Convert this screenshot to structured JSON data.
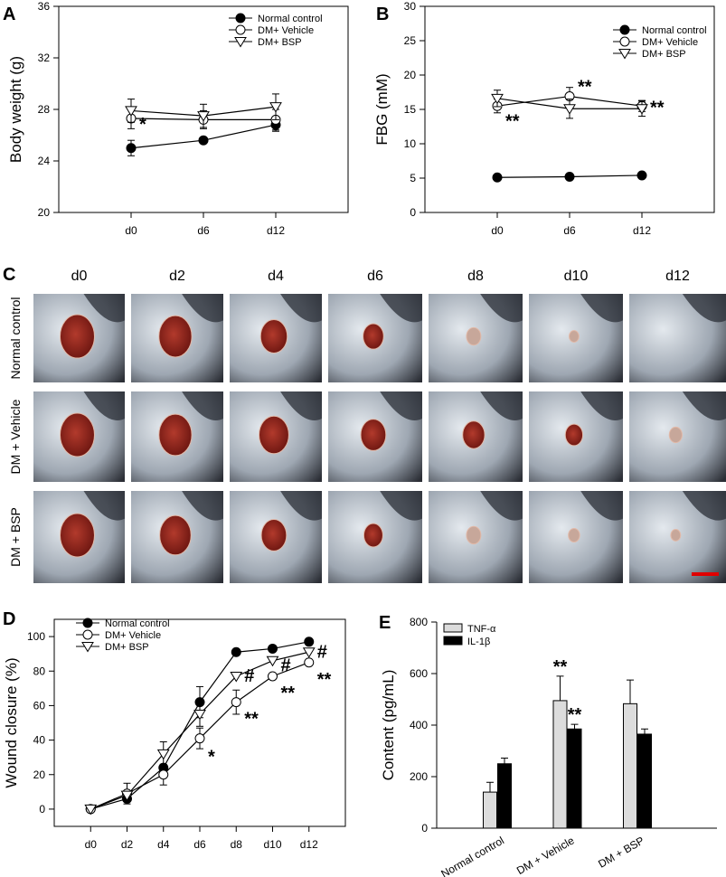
{
  "panels": {
    "A": "A",
    "B": "B",
    "C": "C",
    "D": "D",
    "E": "E"
  },
  "chart_data": [
    {
      "id": "A",
      "type": "line",
      "ylabel": "Body weight (g)",
      "xlabel": "",
      "categories": [
        "d0",
        "d6",
        "d12"
      ],
      "ylim": [
        20,
        36
      ],
      "yticks": [
        20,
        24,
        28,
        32,
        36
      ],
      "series": [
        {
          "name": "Normal control",
          "marker": "filled-circle",
          "values": [
            25.0,
            25.6,
            26.8
          ],
          "err": [
            0.6,
            0.2,
            0.5
          ]
        },
        {
          "name": "DM+ Vehicle",
          "marker": "open-circle",
          "values": [
            27.3,
            27.2,
            27.2
          ],
          "err": [
            0.8,
            0.7,
            0.8
          ]
        },
        {
          "name": "DM+ BSP",
          "marker": "open-triangle",
          "values": [
            27.9,
            27.5,
            28.2
          ],
          "err": [
            0.9,
            0.9,
            1.0
          ]
        }
      ],
      "annotations": [
        {
          "x": "d0",
          "y": 26.8,
          "text": "*"
        }
      ]
    },
    {
      "id": "B",
      "type": "line",
      "ylabel": "FBG (mM)",
      "xlabel": "",
      "categories": [
        "d0",
        "d6",
        "d12"
      ],
      "ylim": [
        0,
        30
      ],
      "yticks": [
        0,
        5,
        10,
        15,
        20,
        25,
        30
      ],
      "series": [
        {
          "name": "Normal control",
          "marker": "filled-circle",
          "values": [
            5.1,
            5.2,
            5.4
          ],
          "err": [
            0.2,
            0.3,
            0.3
          ]
        },
        {
          "name": "DM+ Vehicle",
          "marker": "open-circle",
          "values": [
            15.5,
            16.9,
            15.5
          ],
          "err": [
            1.0,
            1.3,
            0.8
          ]
        },
        {
          "name": "DM+ BSP",
          "marker": "open-triangle",
          "values": [
            16.6,
            15.1,
            15.1
          ],
          "err": [
            1.2,
            1.4,
            1.1
          ]
        }
      ],
      "annotations": [
        {
          "x": "d0",
          "y": 13.2,
          "text": "**"
        },
        {
          "x": "d6",
          "y": 18.2,
          "text": "**"
        },
        {
          "x": "d12",
          "y": 15.2,
          "text": "**"
        }
      ]
    },
    {
      "id": "D",
      "type": "line",
      "ylabel": "Wound closure (%)",
      "xlabel": "",
      "categories": [
        "d0",
        "d2",
        "d4",
        "d6",
        "d8",
        "d10",
        "d12"
      ],
      "ylim": [
        -10,
        110
      ],
      "yticks": [
        0,
        20,
        40,
        60,
        80,
        100
      ],
      "series": [
        {
          "name": "Normal control",
          "marker": "filled-circle",
          "values": [
            0,
            6,
            24,
            62,
            91,
            93,
            97
          ],
          "err": [
            0,
            0,
            0,
            9,
            0,
            0,
            0
          ]
        },
        {
          "name": "DM+ Vehicle",
          "marker": "open-circle",
          "values": [
            0,
            9,
            20,
            41,
            62,
            77,
            85
          ],
          "err": [
            0,
            6,
            6,
            6,
            7,
            0,
            0
          ]
        },
        {
          "name": "DM+ BSP",
          "marker": "open-triangle",
          "values": [
            0,
            8,
            32,
            55,
            77,
            86,
            91
          ],
          "err": [
            0,
            0,
            7,
            7,
            0,
            0,
            0
          ]
        }
      ],
      "annotations": [
        {
          "x": "d6",
          "y": 30,
          "text": "*"
        },
        {
          "x": "d8",
          "y": 52,
          "text": "**"
        },
        {
          "x": "d8",
          "y": 77,
          "text": "#"
        },
        {
          "x": "d10",
          "y": 83,
          "text": "#"
        },
        {
          "x": "d10",
          "y": 67,
          "text": "**"
        },
        {
          "x": "d12",
          "y": 75,
          "text": "**"
        },
        {
          "x": "d12",
          "y": 91,
          "text": "#"
        }
      ]
    },
    {
      "id": "E",
      "type": "bar",
      "ylabel": "Content (pg/mL)",
      "xlabel": "",
      "categories": [
        "Normal control",
        "DM + Vehicle",
        "DM + BSP"
      ],
      "ylim": [
        0,
        800
      ],
      "yticks": [
        0,
        200,
        400,
        600,
        800
      ],
      "series": [
        {
          "name": "TNF-α",
          "color": "#dcdcdc",
          "values": [
            140,
            495,
            483
          ],
          "err": [
            38,
            95,
            92
          ]
        },
        {
          "name": "IL-1β",
          "color": "#000000",
          "values": [
            250,
            385,
            365
          ],
          "err": [
            22,
            18,
            20
          ]
        }
      ],
      "annotations": [
        {
          "x": "DM + Vehicle",
          "series": "TNF-α",
          "text": "**"
        },
        {
          "x": "DM + Vehicle",
          "series": "IL-1β",
          "text": "**"
        }
      ]
    }
  ],
  "photos": {
    "days": [
      "d0",
      "d2",
      "d4",
      "d6",
      "d8",
      "d10",
      "d12"
    ],
    "rows": [
      {
        "label": "Normal control",
        "wound": [
          1.0,
          0.95,
          0.75,
          0.55,
          0.35,
          0.2,
          0.0
        ]
      },
      {
        "label": "DM + Vehicle",
        "wound": [
          1.0,
          0.95,
          0.85,
          0.7,
          0.6,
          0.45,
          0.3
        ]
      },
      {
        "label": "DM + BSP",
        "wound": [
          1.0,
          0.9,
          0.7,
          0.5,
          0.35,
          0.25,
          0.2
        ]
      }
    ],
    "scale_bar_color": "#e00000"
  }
}
